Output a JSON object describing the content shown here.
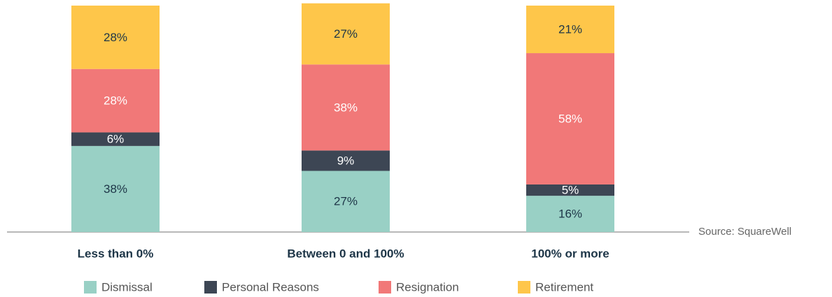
{
  "chart_data": {
    "type": "stacked_bar",
    "categories": [
      "Less than 0%",
      "Between 0 and 100%",
      "100% or more"
    ],
    "series": [
      {
        "name": "Dismissal",
        "color": "#99d0c5",
        "values": [
          38,
          27,
          16
        ],
        "value_labels": [
          "38%",
          "27%",
          "16%"
        ]
      },
      {
        "name": "Personal Reasons",
        "color": "#3d4654",
        "values": [
          6,
          9,
          5
        ],
        "value_labels": [
          "6%",
          "9%",
          "5%"
        ]
      },
      {
        "name": "Resignation",
        "color": "#f17878",
        "values": [
          28,
          38,
          58
        ],
        "value_labels": [
          "28%",
          "38%",
          "58%"
        ]
      },
      {
        "name": "Retirement",
        "color": "#fec64a",
        "values": [
          28,
          27,
          21
        ],
        "value_labels": [
          "28%",
          "27%",
          "21%"
        ]
      }
    ],
    "ylim": [
      0,
      100
    ],
    "annotation": "Source: SquareWell",
    "legend": "bottom"
  }
}
